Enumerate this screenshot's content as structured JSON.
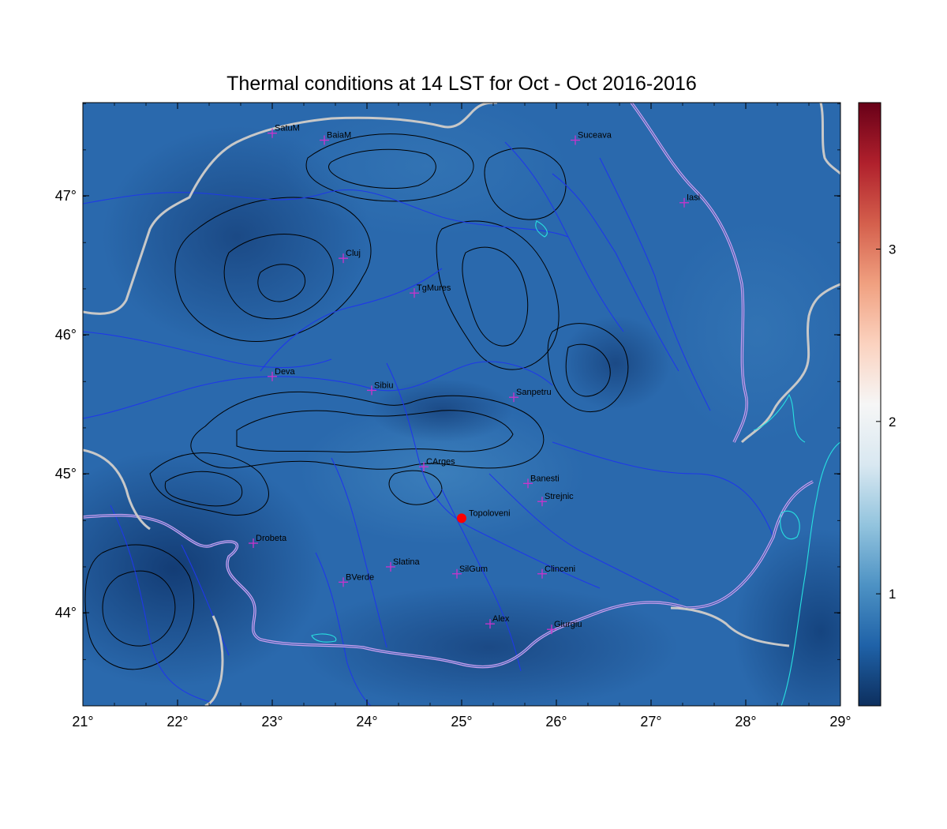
{
  "title": "Thermal conditions at 14 LST for Oct - Oct  2016-2016",
  "map": {
    "lon_range": [
      21,
      29
    ],
    "lat_range": [
      43.33,
      47.67
    ],
    "x_ticks": [
      "21°",
      "22°",
      "23°",
      "24°",
      "25°",
      "26°",
      "27°",
      "28°",
      "29°"
    ],
    "y_ticks": [
      "44°",
      "45°",
      "46°",
      "47°"
    ],
    "x_tick_values": [
      21,
      22,
      23,
      24,
      25,
      26,
      27,
      28,
      29
    ],
    "y_tick_values": [
      44,
      45,
      46,
      47
    ]
  },
  "colorbar": {
    "colormap": "RdBu_r",
    "range": [
      0.35,
      3.85
    ],
    "tick_values": [
      1,
      2,
      3
    ],
    "tick_labels": [
      "1",
      "2",
      "3"
    ],
    "colors": [
      "#0d2f5e",
      "#1f62a8",
      "#4d92c4",
      "#93c4de",
      "#d9e8f1",
      "#f6f6f6",
      "#fbd2bf",
      "#f0a080",
      "#d45f4c",
      "#b0202c",
      "#680018"
    ]
  },
  "stations": [
    {
      "name": "SatuM",
      "lon": 23.0,
      "lat": 47.45
    },
    {
      "name": "BaiaM",
      "lon": 23.55,
      "lat": 47.4
    },
    {
      "name": "Suceava",
      "lon": 26.2,
      "lat": 47.4
    },
    {
      "name": "Iasi",
      "lon": 27.35,
      "lat": 46.95
    },
    {
      "name": "Cluj",
      "lon": 23.75,
      "lat": 46.55
    },
    {
      "name": "TgMures",
      "lon": 24.5,
      "lat": 46.3
    },
    {
      "name": "Deva",
      "lon": 23.0,
      "lat": 45.7
    },
    {
      "name": "Sibiu",
      "lon": 24.05,
      "lat": 45.6
    },
    {
      "name": "Sanpetru",
      "lon": 25.55,
      "lat": 45.55
    },
    {
      "name": "CArges",
      "lon": 24.6,
      "lat": 45.05
    },
    {
      "name": "Banesti",
      "lon": 25.7,
      "lat": 44.93
    },
    {
      "name": "Strejnic",
      "lon": 25.85,
      "lat": 44.8
    },
    {
      "name": "Drobeta",
      "lon": 22.8,
      "lat": 44.5
    },
    {
      "name": "Slatina",
      "lon": 24.25,
      "lat": 44.33
    },
    {
      "name": "SilGum",
      "lon": 24.95,
      "lat": 44.28
    },
    {
      "name": "Clinceni",
      "lon": 25.85,
      "lat": 44.28
    },
    {
      "name": "BVerde",
      "lon": 23.75,
      "lat": 44.22
    },
    {
      "name": "Alex",
      "lon": 25.3,
      "lat": 43.92
    },
    {
      "name": "Giurgiu",
      "lon": 25.95,
      "lat": 43.88
    }
  ],
  "highlight_station": {
    "name": "Topoloveni",
    "lon": 25.0,
    "lat": 44.68,
    "color": "#ff0000"
  },
  "station_marker_color": "#cc33cc"
}
